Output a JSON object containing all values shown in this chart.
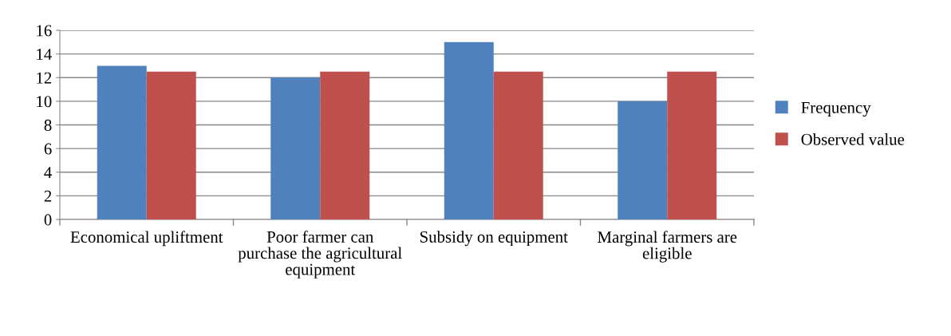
{
  "chart_data": {
    "type": "bar",
    "categories": [
      "Economical upliftment",
      "Poor farmer can purchase the agricultural equipment",
      "Subsidy on equipment",
      "Marginal farmers are eligible"
    ],
    "series": [
      {
        "name": "Frequency",
        "color": "#4f81bd",
        "values": [
          13,
          12,
          15,
          10
        ]
      },
      {
        "name": "Observed value",
        "color": "#c0504d",
        "values": [
          12.5,
          12.5,
          12.5,
          12.5
        ]
      }
    ],
    "ylim": [
      0,
      16
    ],
    "yticks": [
      0,
      2,
      4,
      6,
      8,
      10,
      12,
      14,
      16
    ],
    "grid": "y",
    "legend": "right"
  }
}
